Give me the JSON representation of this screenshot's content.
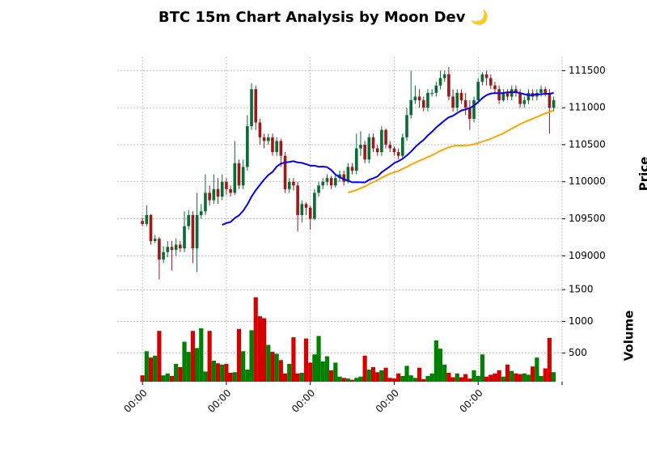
{
  "chart_data": {
    "type": "candlestick",
    "title": "BTC 15m Chart Analysis by Moon Dev 🌙",
    "ylabel": "Price",
    "volume_label": "Volume",
    "up_color": "#0a6b35",
    "down_color": "#9b1b1b",
    "volume_up_color": "#008000",
    "volume_down_color": "#d40000",
    "grid": true,
    "xlim": [
      -6,
      100
    ],
    "xticks": [
      {
        "value": 0,
        "label": "00:00"
      },
      {
        "value": 20,
        "label": "00:00"
      },
      {
        "value": 40,
        "label": "00:00"
      },
      {
        "value": 60,
        "label": "00:00"
      },
      {
        "value": 80,
        "label": "00:00"
      },
      {
        "value": 100,
        "label": null
      }
    ],
    "ylim": [
      108610,
      111690
    ],
    "yticks": [
      109000,
      109500,
      110000,
      110500,
      111000,
      111500
    ],
    "volume_ylim": [
      50,
      1540
    ],
    "volume_ticks": [
      500,
      1000,
      1500
    ],
    "moving_averages": [
      {
        "window": 20,
        "color": "#0000ee"
      },
      {
        "window": 50,
        "color": "#ffa500"
      }
    ],
    "ohlc": [
      [
        109470,
        109520,
        109400,
        109430
      ],
      [
        109430,
        109680,
        109400,
        109550
      ],
      [
        109550,
        109560,
        109150,
        109200
      ],
      [
        109200,
        109280,
        109170,
        109230
      ],
      [
        109230,
        109250,
        108680,
        108950
      ],
      [
        108950,
        109130,
        108900,
        109050
      ],
      [
        109050,
        109200,
        108980,
        109120
      ],
      [
        109120,
        109200,
        108800,
        109080
      ],
      [
        109080,
        109230,
        109000,
        109150
      ],
      [
        109150,
        109200,
        109050,
        109100
      ],
      [
        109100,
        109600,
        109050,
        109400
      ],
      [
        109400,
        109620,
        109350,
        109550
      ],
      [
        109550,
        109600,
        108900,
        109100
      ],
      [
        109100,
        109850,
        108780,
        109550
      ],
      [
        109550,
        109700,
        109500,
        109600
      ],
      [
        109600,
        110100,
        109550,
        109850
      ],
      [
        109850,
        109950,
        109680,
        109750
      ],
      [
        109750,
        110100,
        109700,
        109900
      ],
      [
        109900,
        110050,
        109700,
        109800
      ],
      [
        109800,
        110100,
        109750,
        110000
      ],
      [
        110000,
        110050,
        109820,
        109900
      ],
      [
        109900,
        109950,
        109800,
        109850
      ],
      [
        109850,
        110550,
        109820,
        110250
      ],
      [
        110250,
        110300,
        109900,
        109950
      ],
      [
        109950,
        110300,
        109900,
        110200
      ],
      [
        110200,
        110900,
        110150,
        110750
      ],
      [
        110750,
        111330,
        110700,
        111250
      ],
      [
        111250,
        111300,
        110700,
        110800
      ],
      [
        110800,
        110850,
        110500,
        110600
      ],
      [
        110600,
        110650,
        110450,
        110550
      ],
      [
        110550,
        110650,
        110500,
        110600
      ],
      [
        110600,
        110650,
        110350,
        110400
      ],
      [
        110400,
        110600,
        110350,
        110550
      ],
      [
        110550,
        110580,
        110200,
        110350
      ],
      [
        110350,
        110400,
        109850,
        109900
      ],
      [
        109900,
        110050,
        109850,
        110000
      ],
      [
        110000,
        110050,
        109880,
        109950
      ],
      [
        109950,
        110000,
        109330,
        109550
      ],
      [
        109550,
        109750,
        109450,
        109700
      ],
      [
        109700,
        109720,
        109550,
        109650
      ],
      [
        109650,
        109680,
        109350,
        109500
      ],
      [
        109500,
        109900,
        109480,
        109850
      ],
      [
        109850,
        110000,
        109800,
        109950
      ],
      [
        109950,
        110050,
        109900,
        110000
      ],
      [
        110000,
        110100,
        109950,
        110050
      ],
      [
        110050,
        110080,
        109900,
        109950
      ],
      [
        109950,
        110100,
        109920,
        110050
      ],
      [
        110050,
        110150,
        110000,
        110100
      ],
      [
        110100,
        110150,
        109950,
        110000
      ],
      [
        110000,
        110250,
        109980,
        110200
      ],
      [
        110200,
        110250,
        110100,
        110150
      ],
      [
        110150,
        110650,
        110100,
        110450
      ],
      [
        110450,
        110680,
        110350,
        110500
      ],
      [
        110500,
        110550,
        110250,
        110300
      ],
      [
        110300,
        110650,
        110250,
        110600
      ],
      [
        110600,
        110650,
        110400,
        110450
      ],
      [
        110450,
        110500,
        110350,
        110400
      ],
      [
        110400,
        110750,
        110350,
        110700
      ],
      [
        110700,
        110720,
        110450,
        110500
      ],
      [
        110500,
        110550,
        110400,
        110450
      ],
      [
        110450,
        110480,
        110350,
        110400
      ],
      [
        110400,
        110450,
        110300,
        110350
      ],
      [
        110350,
        110650,
        110300,
        110600
      ],
      [
        110600,
        111000,
        110550,
        110900
      ],
      [
        110900,
        111500,
        110850,
        111100
      ],
      [
        111100,
        111300,
        111050,
        111150
      ],
      [
        111150,
        111250,
        111000,
        111100
      ],
      [
        111100,
        111150,
        110950,
        111000
      ],
      [
        111000,
        111250,
        110950,
        111200
      ],
      [
        111200,
        111250,
        111150,
        111200
      ],
      [
        111200,
        111350,
        111150,
        111300
      ],
      [
        111300,
        111500,
        111250,
        111400
      ],
      [
        111400,
        111500,
        111350,
        111450
      ],
      [
        111450,
        111550,
        111100,
        111150
      ],
      [
        111150,
        111250,
        110950,
        111000
      ],
      [
        111000,
        111250,
        110950,
        111200
      ],
      [
        111200,
        111250,
        111050,
        111100
      ],
      [
        111100,
        111200,
        110900,
        111000
      ],
      [
        111000,
        111100,
        110700,
        110850
      ],
      [
        110850,
        111150,
        110800,
        111100
      ],
      [
        111100,
        111400,
        111050,
        111350
      ],
      [
        111350,
        111480,
        111300,
        111450
      ],
      [
        111450,
        111500,
        111300,
        111400
      ],
      [
        111400,
        111450,
        111250,
        111300
      ],
      [
        111300,
        111350,
        111200,
        111250
      ],
      [
        111250,
        111300,
        111050,
        111100
      ],
      [
        111100,
        111250,
        111080,
        111200
      ],
      [
        111200,
        111250,
        111100,
        111150
      ],
      [
        111150,
        111300,
        111100,
        111250
      ],
      [
        111250,
        111300,
        111150,
        111200
      ],
      [
        111200,
        111250,
        111000,
        111050
      ],
      [
        111050,
        111150,
        111000,
        111100
      ],
      [
        111100,
        111250,
        111050,
        111200
      ],
      [
        111200,
        111250,
        111100,
        111150
      ],
      [
        111150,
        111250,
        111100,
        111200
      ],
      [
        111200,
        111300,
        111150,
        111250
      ],
      [
        111250,
        111280,
        111150,
        111200
      ],
      [
        111200,
        111250,
        110650,
        111000
      ],
      [
        111000,
        111150,
        110950,
        111100
      ]
    ],
    "volume": [
      150,
      530,
      430,
      460,
      850,
      150,
      180,
      140,
      330,
      280,
      680,
      520,
      850,
      580,
      890,
      210,
      850,
      380,
      340,
      320,
      330,
      190,
      200,
      880,
      530,
      240,
      860,
      1380,
      1080,
      1050,
      630,
      520,
      490,
      390,
      180,
      330,
      750,
      180,
      190,
      730,
      350,
      480,
      770,
      370,
      450,
      230,
      350,
      130,
      110,
      100,
      80,
      110,
      130,
      460,
      240,
      280,
      200,
      230,
      270,
      110,
      100,
      180,
      140,
      300,
      150,
      110,
      270,
      90,
      140,
      180,
      700,
      570,
      320,
      190,
      120,
      180,
      120,
      170,
      100,
      230,
      140,
      480,
      130,
      160,
      180,
      230,
      130,
      320,
      220,
      180,
      170,
      180,
      160,
      290,
      430,
      140,
      260,
      740,
      200
    ]
  }
}
